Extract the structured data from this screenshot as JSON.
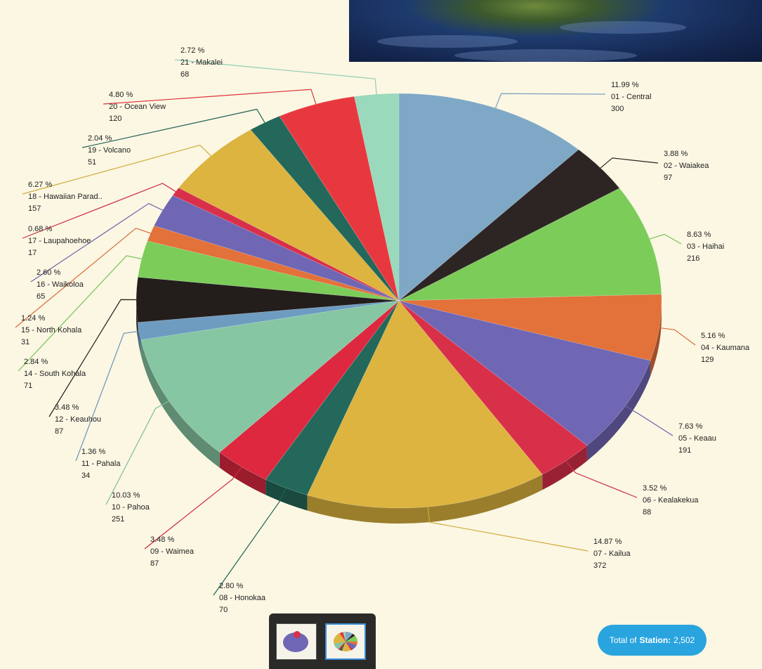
{
  "chart_data": {
    "type": "pie",
    "title": "",
    "slices": [
      {
        "pct": "11.99 %",
        "name": "01 - Central",
        "count": "300",
        "value": 300,
        "color": "#7fa8c6"
      },
      {
        "pct": "3.88 %",
        "name": "02 - Waiakea",
        "count": "97",
        "value": 97,
        "color": "#2d2523"
      },
      {
        "pct": "8.63 %",
        "name": "03 - Haihai",
        "count": "216",
        "value": 216,
        "color": "#7ccc5a"
      },
      {
        "pct": "5.16 %",
        "name": "04 - Kaumana",
        "count": "129",
        "value": 129,
        "color": "#e2713a"
      },
      {
        "pct": "7.63 %",
        "name": "05 - Keaau",
        "count": "191",
        "value": 191,
        "color": "#6f67b4"
      },
      {
        "pct": "3.52 %",
        "name": "06 - Kealakekua",
        "count": "88",
        "value": 88,
        "color": "#d9304a"
      },
      {
        "pct": "14.87 %",
        "name": "07 - Kailua",
        "count": "372",
        "value": 372,
        "color": "#dcb43f"
      },
      {
        "pct": "2.80 %",
        "name": "08 - Honokaa",
        "count": "70",
        "value": 70,
        "color": "#23685a"
      },
      {
        "pct": "3.48 %",
        "name": "09 - Waimea",
        "count": "87",
        "value": 87,
        "color": "#dd2840"
      },
      {
        "pct": "10.03 %",
        "name": "10 - Pahoa",
        "count": "251",
        "value": 251,
        "color": "#86c6a3"
      },
      {
        "pct": "1.36 %",
        "name": "11 - Pahala",
        "count": "34",
        "value": 34,
        "color": "#6d9cc0"
      },
      {
        "pct": "3.48 %",
        "name": "12 - Keauhou",
        "count": "87",
        "value": 87,
        "color": "#231d1c"
      },
      {
        "pct": "2.84 %",
        "name": "14 - South Kohala",
        "count": "71",
        "value": 71,
        "color": "#7ccc5a"
      },
      {
        "pct": "1.24 %",
        "name": "15 - North Kohala",
        "count": "31",
        "value": 31,
        "color": "#e2713a"
      },
      {
        "pct": "2.60 %",
        "name": "16 - Waikoloa",
        "count": "65",
        "value": 65,
        "color": "#6f67b4"
      },
      {
        "pct": "0.68 %",
        "name": "17 - Laupahoehoe",
        "count": "17",
        "value": 17,
        "color": "#d9304a"
      },
      {
        "pct": "6.27 %",
        "name": "18 - Hawaiian Parad..",
        "count": "157",
        "value": 157,
        "color": "#dcb43f"
      },
      {
        "pct": "2.04 %",
        "name": "19 - Volcano",
        "count": "51",
        "value": 51,
        "color": "#23685a"
      },
      {
        "pct": "4.80 %",
        "name": "20 - Ocean View",
        "count": "120",
        "value": 120,
        "color": "#e8383f"
      },
      {
        "pct": "2.72 %",
        "name": "21 - Makalei",
        "count": "68",
        "value": 68,
        "color": "#9ad9bb"
      }
    ]
  },
  "summary": {
    "prefix": "Total of",
    "key": "Station:",
    "value": "2,502"
  },
  "thumbnails": [
    "pie-chart-thumbnail",
    "multi-pie-thumbnail"
  ]
}
